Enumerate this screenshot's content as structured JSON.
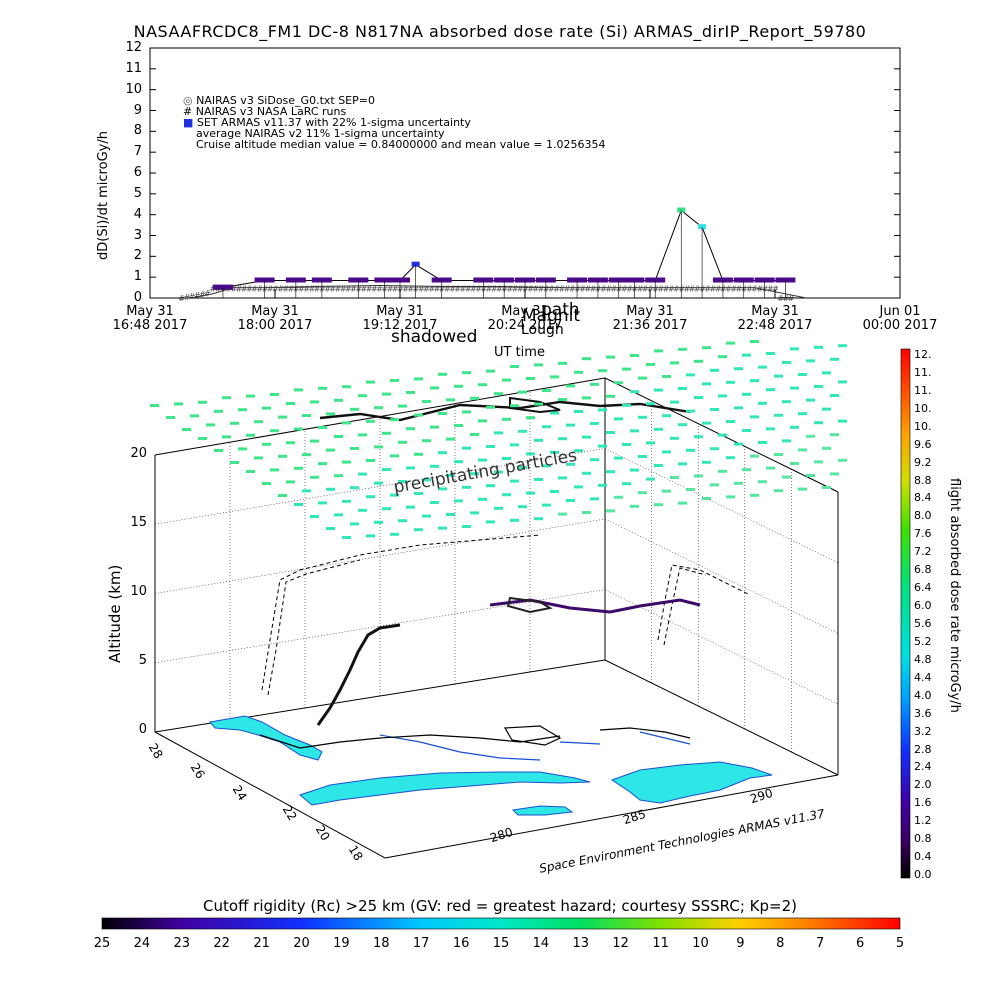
{
  "title": "NASAAFRCDC8_FM1 DC-8   N817NA absorbed dose rate (Si) ARMAS_dirIP_Report_59780",
  "top_chart": {
    "ylabel": "dD(Si)/dt microGy/h",
    "xlabel": "UT time",
    "y_ticks": [
      "0",
      "1",
      "2",
      "3",
      "4",
      "5",
      "6",
      "7",
      "8",
      "9",
      "10",
      "11",
      "12"
    ],
    "x_ticks": [
      {
        "line1": "May 31",
        "line2": "16:48 2017"
      },
      {
        "line1": "May 31",
        "line2": "18:00 2017"
      },
      {
        "line1": "May 31",
        "line2": "19:12 2017"
      },
      {
        "line1": "May 31",
        "line2": "20:24 2017"
      },
      {
        "line1": "May 31",
        "line2": "21:36 2017"
      },
      {
        "line1": "May 31",
        "line2": "22:48 2017"
      },
      {
        "line1": "Jun 01",
        "line2": "00:00 2017"
      }
    ],
    "legend": [
      "NAIRAS v3 SiDose_G0.txt SEP=0",
      "NAIRAS v3 NASA LaRC runs",
      "SET ARMAS v11.37 with 22% 1-sigma uncertainty",
      "average NAIRAS v2 11% 1-sigma uncertainty",
      "Cruise altitude median value = 0.84000000 and mean value = 1.0256354"
    ],
    "overlay_texts": [
      "shadowed",
      "Magnit",
      "Lough",
      "path"
    ]
  },
  "chart_data": {
    "type": "line",
    "x_unit": "hours UT May 31 2017",
    "xlim": [
      16.8,
      24.0
    ],
    "ylim": [
      0,
      12
    ],
    "series": [
      {
        "name": "SET ARMAS v11.37 with 22% 1-sigma uncertainty",
        "x": [
          17.5,
          17.9,
          18.2,
          18.45,
          18.8,
          19.05,
          19.2,
          19.35,
          19.6,
          20.0,
          20.2,
          20.4,
          20.6,
          20.9,
          21.1,
          21.3,
          21.45,
          21.65,
          21.9,
          22.1,
          22.3,
          22.5,
          22.7,
          22.9
        ],
        "y": [
          0.5,
          0.84,
          0.84,
          0.84,
          0.84,
          0.84,
          0.84,
          1.6,
          0.84,
          0.84,
          0.84,
          0.84,
          0.84,
          0.84,
          0.84,
          0.84,
          0.84,
          0.84,
          4.2,
          3.4,
          0.84,
          0.84,
          0.84,
          0.84
        ]
      },
      {
        "name": "NAIRAS v3 SiDose_G0.txt SEP=0",
        "x": [
          17.2,
          17.4,
          17.6,
          17.9,
          18.4,
          19.0,
          19.6,
          20.2,
          20.8,
          21.4,
          22.0,
          22.6,
          22.9,
          23.1
        ],
        "y": [
          0.0,
          0.2,
          0.5,
          0.5,
          0.55,
          0.6,
          0.55,
          0.55,
          0.5,
          0.5,
          0.5,
          0.5,
          0.2,
          0.0
        ]
      }
    ]
  },
  "scene": {
    "zlabel": "Altitude (km)",
    "z_ticks": [
      "0",
      "5",
      "10",
      "15",
      "20"
    ],
    "lat_ticks": [
      "28",
      "26",
      "24",
      "22",
      "20",
      "18"
    ],
    "lon_ticks": [
      "280",
      "285",
      "290"
    ],
    "lon_ticks_right": [
      "280",
      "285",
      "290"
    ],
    "annotation": "precipitating particles",
    "credit": "Space Environment Technologies ARMAS v11.37"
  },
  "colorbar": {
    "title": "flight absorbed dose rate microGy/h",
    "labels": [
      "12.",
      "11.",
      "11.",
      "10.",
      "10.",
      "9.6",
      "9.2",
      "8.8",
      "8.4",
      "8.0",
      "7.6",
      "7.2",
      "6.8",
      "6.4",
      "6.0",
      "5.6",
      "5.2",
      "4.8",
      "4.4",
      "4.0",
      "3.6",
      "3.2",
      "2.8",
      "2.4",
      "2.0",
      "1.6",
      "1.2",
      "0.8",
      "0.4",
      "0.0"
    ]
  },
  "rigidity_bar": {
    "title": "Cutoff rigidity (Rc) >25 km (GV: red = greatest hazard; courtesy SSSRC; Kp=2)",
    "ticks": [
      "25",
      "24",
      "23",
      "22",
      "21",
      "20",
      "19",
      "18",
      "17",
      "16",
      "15",
      "14",
      "13",
      "12",
      "11",
      "10",
      "9",
      "8",
      "7",
      "6",
      "5"
    ]
  },
  "colors": {
    "armas": "#4b0a8a",
    "series_high": "#33e08a",
    "series_cyan": "#33e0e6",
    "marker_blue": "#2030e0",
    "land": "#2fe6e6"
  }
}
